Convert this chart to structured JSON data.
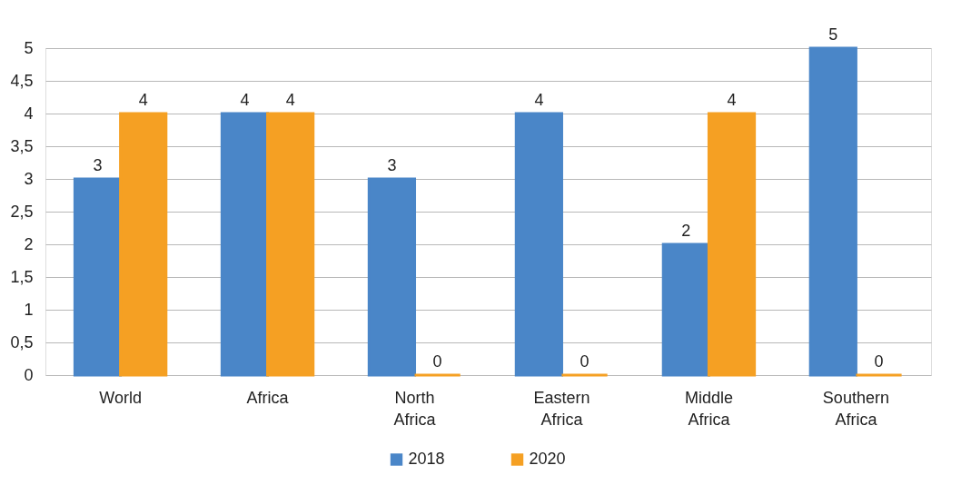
{
  "chart_data": {
    "type": "bar",
    "categories": [
      "World",
      "Africa",
      "North Africa",
      "Eastern Africa",
      "Middle Africa",
      "Southern Africa"
    ],
    "series": [
      {
        "name": "2018",
        "color": "#4a86c8",
        "values": [
          3,
          4,
          3,
          4,
          2,
          5
        ]
      },
      {
        "name": "2020",
        "color": "#f5a023",
        "values": [
          4,
          4,
          0,
          0,
          4,
          0
        ]
      }
    ],
    "ylim": [
      0,
      5
    ],
    "yticks": [
      0,
      {
        "value": 0.5,
        "label": "0,5"
      },
      1,
      {
        "value": 1.5,
        "label": "1,5"
      },
      2,
      {
        "value": 2.5,
        "label": "2,5"
      },
      3,
      {
        "value": 3.5,
        "label": "3,5"
      },
      4,
      {
        "value": 4.5,
        "label": "4,5"
      },
      5
    ],
    "grid": "y",
    "legend": "bottom",
    "data_labels": true
  }
}
